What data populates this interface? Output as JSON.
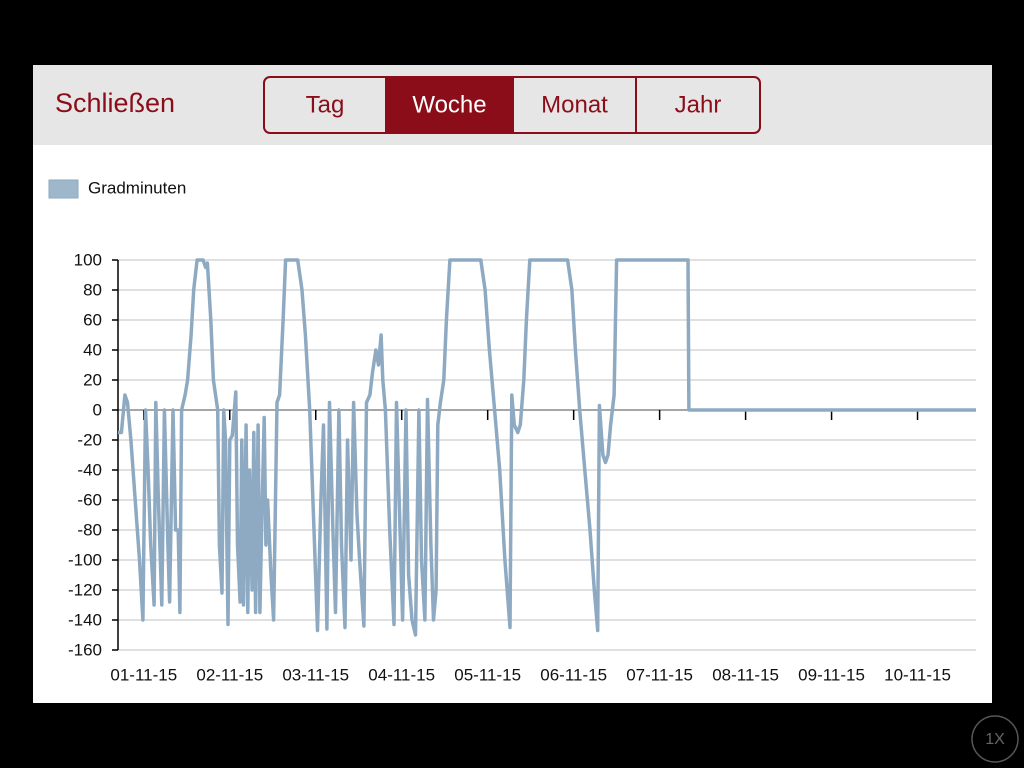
{
  "header": {
    "close": "Schließen",
    "tabs": [
      "Tag",
      "Woche",
      "Monat",
      "Jahr"
    ],
    "selected_tab": 1
  },
  "zoom_button": "1X",
  "chart_data": {
    "type": "line",
    "legend": "top-left",
    "grid": true,
    "series": [
      {
        "name": "Gradminuten",
        "color": "#8eaac2",
        "x": [
          0.7,
          0.74,
          0.78,
          0.81,
          0.85,
          0.9,
          0.95,
          0.99,
          1.02,
          1.05,
          1.08,
          1.12,
          1.14,
          1.17,
          1.21,
          1.24,
          1.28,
          1.3,
          1.34,
          1.37,
          1.4,
          1.42,
          1.44,
          1.48,
          1.51,
          1.55,
          1.58,
          1.62,
          1.69,
          1.72,
          1.74,
          1.78,
          1.81,
          1.86,
          1.88,
          1.91,
          1.93,
          1.95,
          1.98,
          2.0,
          2.03,
          2.07,
          2.09,
          2.12,
          2.14,
          2.16,
          2.19,
          2.21,
          2.23,
          2.26,
          2.28,
          2.3,
          2.33,
          2.35,
          2.37,
          2.4,
          2.42,
          2.44,
          2.48,
          2.51,
          2.55,
          2.58,
          2.62,
          2.65,
          2.79,
          2.84,
          2.88,
          2.93,
          2.98,
          3.02,
          3.06,
          3.09,
          3.13,
          3.16,
          3.2,
          3.23,
          3.27,
          3.3,
          3.34,
          3.37,
          3.41,
          3.44,
          3.48,
          3.51,
          3.56,
          3.59,
          3.63,
          3.66,
          3.7,
          3.73,
          3.76,
          3.78,
          3.81,
          3.86,
          3.91,
          3.94,
          3.98,
          4.01,
          4.05,
          4.08,
          4.12,
          4.16,
          4.2,
          4.23,
          4.27,
          4.3,
          4.34,
          4.37,
          4.4,
          4.42,
          4.45,
          4.49,
          4.52,
          4.56,
          4.92,
          4.97,
          5.02,
          5.08,
          5.14,
          5.2,
          5.26,
          5.28,
          5.31,
          5.35,
          5.38,
          5.42,
          5.45,
          5.49,
          5.93,
          5.98,
          6.02,
          6.07,
          6.13,
          6.19,
          6.24,
          6.28,
          6.3,
          6.34,
          6.37,
          6.4,
          6.43,
          6.47,
          6.5,
          7.33,
          7.34,
          10.68
        ],
        "values": [
          -15,
          -15,
          10,
          5,
          -20,
          -60,
          -100,
          -140,
          0,
          -40,
          -90,
          -130,
          5,
          -60,
          -130,
          0,
          -90,
          -128,
          0,
          -80,
          -80,
          -135,
          0,
          10,
          20,
          50,
          80,
          100,
          100,
          95,
          98,
          60,
          20,
          0,
          -90,
          -122,
          0,
          -20,
          -143,
          -20,
          -17,
          12,
          -90,
          -128,
          -20,
          -130,
          -10,
          -135,
          -40,
          -120,
          -15,
          -135,
          -10,
          -135,
          -80,
          -5,
          -90,
          -60,
          -110,
          -140,
          5,
          10,
          60,
          100,
          100,
          80,
          50,
          0,
          -80,
          -147,
          -60,
          -10,
          -146,
          5,
          -80,
          -135,
          0,
          -90,
          -145,
          -20,
          -100,
          5,
          -70,
          -100,
          -144,
          5,
          10,
          25,
          40,
          30,
          50,
          20,
          0,
          -80,
          -143,
          5,
          -80,
          -140,
          0,
          -110,
          -140,
          -150,
          0,
          -100,
          -140,
          7,
          -90,
          -140,
          -120,
          -10,
          5,
          20,
          60,
          100,
          100,
          80,
          40,
          0,
          -40,
          -100,
          -145,
          10,
          -10,
          -15,
          -10,
          20,
          60,
          100,
          100,
          80,
          40,
          0,
          -40,
          -80,
          -120,
          -147,
          3,
          -30,
          -35,
          -30,
          -10,
          10,
          100,
          100,
          0,
          0
        ]
      }
    ],
    "xlim": [
      0.7,
      10.68
    ],
    "xticks": [
      {
        "value": 1,
        "label": "01-11-15"
      },
      {
        "value": 2,
        "label": "02-11-15"
      },
      {
        "value": 3,
        "label": "03-11-15"
      },
      {
        "value": 4,
        "label": "04-11-15"
      },
      {
        "value": 5,
        "label": "05-11-15"
      },
      {
        "value": 6,
        "label": "06-11-15"
      },
      {
        "value": 7,
        "label": "07-11-15"
      },
      {
        "value": 8,
        "label": "08-11-15"
      },
      {
        "value": 9,
        "label": "09-11-15"
      },
      {
        "value": 10,
        "label": "10-11-15"
      }
    ],
    "ylim": [
      -160,
      100
    ],
    "yticks": [
      -160,
      -140,
      -120,
      -100,
      -80,
      -60,
      -40,
      -20,
      0,
      20,
      40,
      60,
      80,
      100
    ]
  }
}
